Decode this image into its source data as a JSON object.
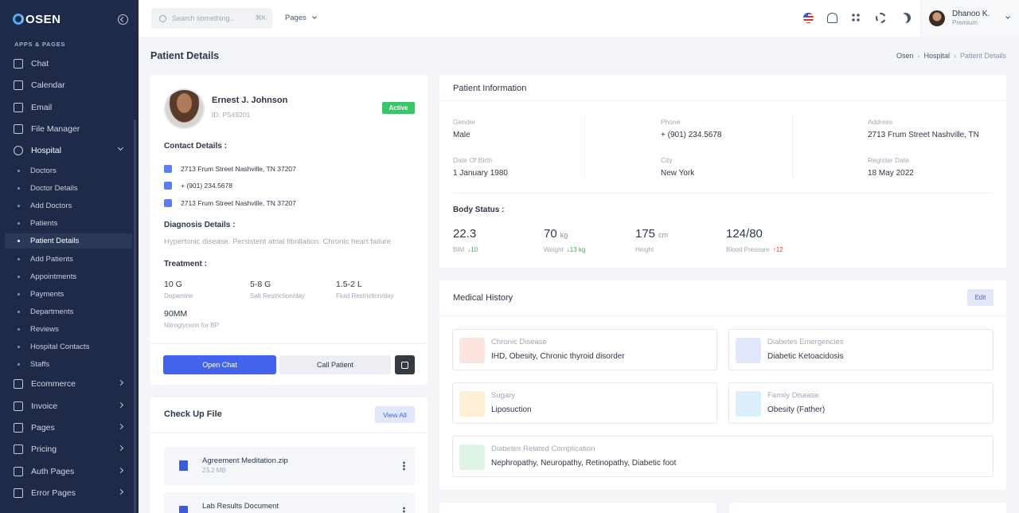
{
  "app": {
    "logo": "OSEN"
  },
  "sidebar": {
    "section": "APPS & PAGES",
    "items": [
      {
        "label": "Chat",
        "icon": "chat-icon"
      },
      {
        "label": "Calendar",
        "icon": "calendar-icon"
      },
      {
        "label": "Email",
        "icon": "email-icon"
      },
      {
        "label": "File Manager",
        "icon": "folder-icon"
      },
      {
        "label": "Hospital",
        "icon": "hospital-icon"
      },
      {
        "label": "Ecommerce",
        "icon": "cart-icon"
      },
      {
        "label": "Invoice",
        "icon": "invoice-icon"
      },
      {
        "label": "Pages",
        "icon": "pages-icon"
      },
      {
        "label": "Pricing",
        "icon": "pricing-icon"
      },
      {
        "label": "Auth Pages",
        "icon": "auth-icon"
      },
      {
        "label": "Error Pages",
        "icon": "error-icon"
      }
    ],
    "sub": [
      "Doctors",
      "Doctor Details",
      "Add Doctors",
      "Patients",
      "Patient Details",
      "Add Patients",
      "Appointments",
      "Payments",
      "Departments",
      "Reviews",
      "Hospital Contacts",
      "Staffs"
    ]
  },
  "topbar": {
    "search_placeholder": "Search something..",
    "shortcut": "⌘K",
    "pages": "Pages",
    "user_name": "Dhanoo K.",
    "user_role": "Premium"
  },
  "page": {
    "title": "Patient Details",
    "crumbs": [
      "Osen",
      "Hospital",
      "Patient Details"
    ]
  },
  "patient": {
    "name": "Ernest J. Johnson",
    "id": "ID: PS49201",
    "status": "Active",
    "contact_h": "Contact Details :",
    "address": "2713 Frum Street Nashville, TN 37207",
    "phone": "+ (901) 234.5678",
    "mail": "2713 Frum Street Nashville, TN 37207",
    "diag_h": "Diagnosis Details :",
    "diag": "Hypertonic disease. Persistent atrial fibrillation. Chronic heart failure",
    "treat_h": "Treatment :",
    "treatments": [
      {
        "value": "10 G",
        "label": "Dopamine"
      },
      {
        "value": "5-8 G",
        "label": "Salt Restriction/day"
      },
      {
        "value": "1.5-2 L",
        "label": "Fluid Restriction/day"
      },
      {
        "value": "90MM",
        "label": "Nitroglycerin for BP"
      }
    ],
    "btn_chat": "Open Chat",
    "btn_call": "Call Patient"
  },
  "checkup": {
    "title": "Check Up File",
    "view_all": "View All",
    "files": [
      {
        "name": "Agreement Meditation.zip",
        "size": "23.2 MB"
      },
      {
        "name": "Lab Results Document",
        "size": ""
      }
    ]
  },
  "info": {
    "title": "Patient Information",
    "gender_l": "Gender",
    "gender": "Male",
    "phone_l": "Phone",
    "phone": "+ (901) 234.5678",
    "address_l": "Address",
    "address": "2713 Frum Street Nashville, TN",
    "dob_l": "Date Of Birth",
    "dob": "1 January 1980",
    "city_l": "City",
    "city": "New York",
    "reg_l": "Register Date",
    "reg": "18 May 2022",
    "body_h": "Body Status :",
    "bim": "22.3",
    "bim_l": "BIM",
    "bim_d": "↓10",
    "weight": "70",
    "weight_u": "kg",
    "weight_l": "Weight",
    "weight_d": "↓13 kg",
    "height": "175",
    "height_u": "cm",
    "height_l": "Height",
    "bp": "124/80",
    "bp_l": "Blood Pressure",
    "bp_d": "↑12"
  },
  "history": {
    "title": "Medical History",
    "edit": "Edit",
    "items": [
      {
        "label": "Chronic Disease",
        "value": "IHD, Obesity, Chronic thyroid disorder",
        "icon": "heartbeat-icon",
        "color": "#fde4de",
        "fg": "#f0643c"
      },
      {
        "label": "Diabetes Emergencies",
        "value": "Diabetic Ketoacidosis",
        "icon": "drop-icon",
        "color": "#e3e7fc",
        "fg": "#4263eb"
      },
      {
        "label": "Sugary",
        "value": "Liposuction",
        "icon": "medkit-icon",
        "color": "#fdf0d5",
        "fg": "#f2b632"
      },
      {
        "label": "Family Disease",
        "value": "Obesity (Father)",
        "icon": "family-icon",
        "color": "#dcf0fb",
        "fg": "#3ba7e0"
      },
      {
        "label": "Diabetes Related Complication",
        "value": "Nephropathy, Neuropathy, Retinopathy, Diabetic foot",
        "icon": "iv-bag-icon",
        "color": "#e0f5e4",
        "fg": "#37b24d"
      }
    ]
  }
}
